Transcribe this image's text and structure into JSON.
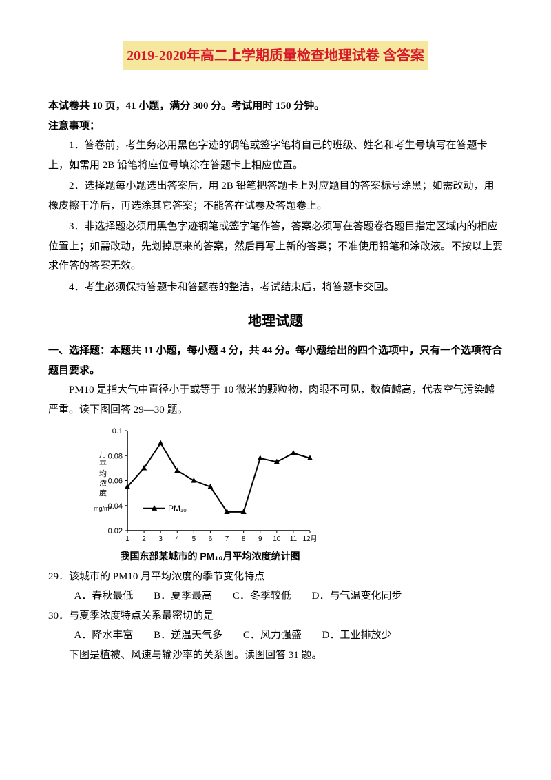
{
  "title": "2019-2020年高二上学期质量检查地理试卷 含答案",
  "intro": "本试卷共 10  页，41 小题，满分 300 分。考试用时 150 分钟。",
  "notice_label": "注意事项：",
  "notices": [
    "1．答卷前，考生务必用黑色字迹的钢笔或签字笔将自己的班级、姓名和考生号填写在答题卡上，如需用 2B 铅笔将座位号填涂在答题卡上相应位置。",
    "2．选择题每小题选出答案后，用 2B 铅笔把答题卡上对应题目的答案标号涂黑；如需改动，用橡皮擦干净后，再选涂其它答案；不能答在试卷及答题卷上。",
    "3．非选择题必须用黑色字迹钢笔或签字笔作答，答案必须写在答题卷各题目指定区域内的相应位置上；如需改动，先划掉原来的答案，然后再写上新的答案；不准使用铅笔和涂改液。不按以上要求作答的答案无效。",
    "4．考生必须保持答题卡和答题卷的整洁，考试结束后，将答题卡交回。"
  ],
  "subject_heading": "地理试题",
  "section1_label": "一、选择题：本题共 11 小题，每小题 4 分，共 44 分。每小题给出的四个选项中，只有一个选项符合题目要求。",
  "pm10_intro": "PM10 是指大气中直径小于或等于 10 微米的颗粒物，肉眼不可见，数值越高，代表空气污染越严重。读下图回答 29—30 题。",
  "chart": {
    "type": "line",
    "x_labels": [
      "1",
      "2",
      "3",
      "4",
      "5",
      "6",
      "7",
      "8",
      "9",
      "10",
      "11",
      "12月"
    ],
    "y_labels": [
      "0.02",
      "0.04",
      "0.06",
      "0.08",
      "0.1"
    ],
    "y_values": [
      0.02,
      0.04,
      0.06,
      0.08,
      0.1
    ],
    "ylim": [
      0.02,
      0.1
    ],
    "data": [
      0.055,
      0.07,
      0.09,
      0.068,
      0.06,
      0.055,
      0.035,
      0.035,
      0.078,
      0.075,
      0.082,
      0.078
    ],
    "line_color": "#000000",
    "bg_color": "#ffffff",
    "marker": "triangle",
    "marker_size": 7,
    "axis_label_y": "月平均浓度",
    "axis_label_y_unit": "mg/m³",
    "legend_label": "PM₁₀",
    "axis_color": "#000000",
    "line_width": 2
  },
  "chart_caption": "我国东部某城市的 PM₁₀月平均浓度统计图",
  "q29": {
    "stem": "29．该城市的 PM10 月平均浓度的季节变化特点",
    "opts": {
      "A": "A．春秋最低",
      "B": "B．夏季最高",
      "C": "C．冬季较低",
      "D": "D．与气温变化同步"
    }
  },
  "q30": {
    "stem": "30．与夏季浓度特点关系最密切的是",
    "opts": {
      "A": "A．降水丰富",
      "B": "B．逆温天气多",
      "C": "C．风力强盛",
      "D": "D．工业排放少"
    }
  },
  "q31_intro": "下图是植被、风速与输沙率的关系图。读图回答 31 题。"
}
